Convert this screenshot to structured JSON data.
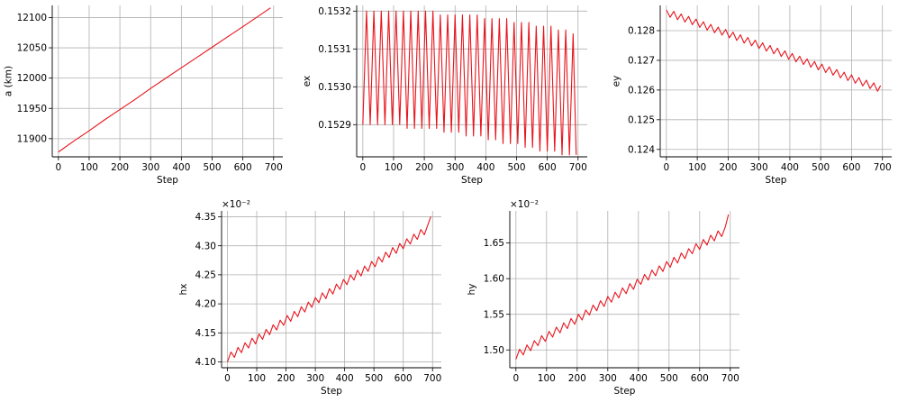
{
  "chart_data": [
    {
      "type": "line",
      "xlabel": "Step",
      "ylabel": "a (km)",
      "xlim": [
        -20,
        730
      ],
      "ylim": [
        11870,
        12120
      ],
      "xticks": [
        0,
        100,
        200,
        300,
        400,
        500,
        600,
        700
      ],
      "xtick_labels": [
        "0",
        "100",
        "200",
        "300",
        "400",
        "500",
        "600",
        "700"
      ],
      "yticks": [
        11900,
        11950,
        12000,
        12050,
        12100
      ],
      "ytick_labels": [
        "11900",
        "11950",
        "12000",
        "12050",
        "12100"
      ],
      "exponent_label": "",
      "grid": true,
      "color": "#e8141c",
      "x": [
        0,
        50,
        100,
        150,
        200,
        250,
        300,
        350,
        400,
        450,
        500,
        550,
        600,
        650,
        690
      ],
      "y": [
        11878,
        11896,
        11913,
        11931,
        11948,
        11965,
        11983,
        12000,
        12017,
        12034,
        12051,
        12068,
        12085,
        12102,
        12116
      ]
    },
    {
      "type": "line",
      "xlabel": "Step",
      "ylabel": "ex",
      "xlim": [
        -20,
        730
      ],
      "ylim": [
        0.152815,
        0.153215
      ],
      "xticks": [
        0,
        100,
        200,
        300,
        400,
        500,
        600,
        700
      ],
      "xtick_labels": [
        "0",
        "100",
        "200",
        "300",
        "400",
        "500",
        "600",
        "700"
      ],
      "yticks": [
        0.1529,
        0.153,
        0.1531,
        0.1532
      ],
      "ytick_labels": [
        "0.1529",
        "0.1530",
        "0.1531",
        "0.1532"
      ],
      "exponent_label": "",
      "grid": true,
      "color": "#e8141c",
      "x": [
        0,
        12,
        24,
        36,
        48,
        60,
        72,
        84,
        96,
        108,
        120,
        132,
        144,
        156,
        168,
        180,
        192,
        204,
        216,
        228,
        240,
        252,
        264,
        276,
        288,
        300,
        312,
        324,
        336,
        348,
        360,
        372,
        384,
        396,
        408,
        420,
        432,
        444,
        456,
        468,
        480,
        492,
        504,
        516,
        528,
        540,
        552,
        564,
        576,
        588,
        600,
        612,
        624,
        636,
        648,
        660,
        672,
        684,
        694
      ],
      "y": [
        0.1529,
        0.1532,
        0.1529,
        0.1532,
        0.1529,
        0.1532,
        0.1529,
        0.1532,
        0.1529,
        0.1532,
        0.1529,
        0.1532,
        0.15289,
        0.1532,
        0.15289,
        0.1532,
        0.15289,
        0.1532,
        0.15289,
        0.1532,
        0.15289,
        0.15319,
        0.15288,
        0.15319,
        0.15288,
        0.15319,
        0.15288,
        0.15319,
        0.15287,
        0.15319,
        0.15287,
        0.15319,
        0.15287,
        0.15318,
        0.15286,
        0.15318,
        0.15286,
        0.15318,
        0.15285,
        0.15318,
        0.15285,
        0.15317,
        0.15285,
        0.15317,
        0.15284,
        0.15317,
        0.15284,
        0.15316,
        0.15283,
        0.15316,
        0.15283,
        0.15316,
        0.15283,
        0.15315,
        0.15282,
        0.15315,
        0.15282,
        0.15314,
        0.15282
      ]
    },
    {
      "type": "line",
      "xlabel": "Step",
      "ylabel": "ey",
      "xlim": [
        -20,
        730
      ],
      "ylim": [
        0.12375,
        0.12885
      ],
      "xticks": [
        0,
        100,
        200,
        300,
        400,
        500,
        600,
        700
      ],
      "xtick_labels": [
        "0",
        "100",
        "200",
        "300",
        "400",
        "500",
        "600",
        "700"
      ],
      "yticks": [
        0.124,
        0.125,
        0.126,
        0.127,
        0.128
      ],
      "ytick_labels": [
        "0.124",
        "0.125",
        "0.126",
        "0.127",
        "0.128"
      ],
      "exponent_label": "",
      "grid": true,
      "color": "#e8141c",
      "x": [
        0,
        12,
        24,
        36,
        48,
        60,
        72,
        84,
        96,
        108,
        120,
        132,
        144,
        156,
        168,
        180,
        192,
        204,
        216,
        228,
        240,
        252,
        264,
        276,
        288,
        300,
        312,
        324,
        336,
        348,
        360,
        372,
        384,
        396,
        408,
        420,
        432,
        444,
        456,
        468,
        480,
        492,
        504,
        516,
        528,
        540,
        552,
        564,
        576,
        588,
        600,
        612,
        624,
        636,
        648,
        660,
        672,
        684,
        694
      ],
      "y": [
        0.1287,
        0.12845,
        0.12865,
        0.12837,
        0.12856,
        0.12829,
        0.12848,
        0.1282,
        0.12839,
        0.12811,
        0.1283,
        0.12802,
        0.12821,
        0.12793,
        0.12812,
        0.12785,
        0.12804,
        0.12776,
        0.12795,
        0.12767,
        0.12786,
        0.12758,
        0.12777,
        0.12749,
        0.12768,
        0.1274,
        0.12759,
        0.12731,
        0.1275,
        0.12722,
        0.12741,
        0.12713,
        0.12732,
        0.12704,
        0.12723,
        0.12695,
        0.12714,
        0.12686,
        0.12705,
        0.12677,
        0.12696,
        0.12668,
        0.12687,
        0.12659,
        0.12678,
        0.1265,
        0.12669,
        0.12641,
        0.1266,
        0.12632,
        0.12651,
        0.12623,
        0.12642,
        0.12614,
        0.12633,
        0.12605,
        0.12624,
        0.12596,
        0.12615
      ]
    },
    {
      "type": "line",
      "xlabel": "Step",
      "ylabel": "hx",
      "xlim": [
        -20,
        730
      ],
      "ylim": [
        4.09,
        4.36
      ],
      "xticks": [
        0,
        100,
        200,
        300,
        400,
        500,
        600,
        700
      ],
      "xtick_labels": [
        "0",
        "100",
        "200",
        "300",
        "400",
        "500",
        "600",
        "700"
      ],
      "yticks": [
        4.1,
        4.15,
        4.2,
        4.25,
        4.3,
        4.35
      ],
      "ytick_labels": [
        "4.10",
        "4.15",
        "4.20",
        "4.25",
        "4.30",
        "4.35"
      ],
      "exponent_label": "×10⁻²",
      "grid": true,
      "color": "#e8141c",
      "x": [
        0,
        12,
        24,
        36,
        48,
        60,
        72,
        84,
        96,
        108,
        120,
        132,
        144,
        156,
        168,
        180,
        192,
        204,
        216,
        228,
        240,
        252,
        264,
        276,
        288,
        300,
        312,
        324,
        336,
        348,
        360,
        372,
        384,
        396,
        408,
        420,
        432,
        444,
        456,
        468,
        480,
        492,
        504,
        516,
        528,
        540,
        552,
        564,
        576,
        588,
        600,
        612,
        624,
        636,
        648,
        660,
        672,
        684,
        694
      ],
      "y": [
        4.1,
        4.117,
        4.108,
        4.125,
        4.116,
        4.133,
        4.124,
        4.141,
        4.131,
        4.148,
        4.139,
        4.156,
        4.147,
        4.164,
        4.155,
        4.172,
        4.163,
        4.18,
        4.17,
        4.187,
        4.178,
        4.195,
        4.186,
        4.203,
        4.194,
        4.211,
        4.202,
        4.219,
        4.209,
        4.226,
        4.217,
        4.234,
        4.225,
        4.242,
        4.233,
        4.25,
        4.241,
        4.258,
        4.248,
        4.265,
        4.256,
        4.273,
        4.264,
        4.281,
        4.272,
        4.289,
        4.28,
        4.297,
        4.287,
        4.304,
        4.295,
        4.312,
        4.303,
        4.32,
        4.311,
        4.328,
        4.319,
        4.336,
        4.35
      ]
    },
    {
      "type": "line",
      "xlabel": "Step",
      "ylabel": "hy",
      "xlim": [
        -20,
        730
      ],
      "ylim": [
        1.475,
        1.695
      ],
      "xticks": [
        0,
        100,
        200,
        300,
        400,
        500,
        600,
        700
      ],
      "xtick_labels": [
        "0",
        "100",
        "200",
        "300",
        "400",
        "500",
        "600",
        "700"
      ],
      "yticks": [
        1.5,
        1.55,
        1.6,
        1.65
      ],
      "ytick_labels": [
        "1.50",
        "1.55",
        "1.60",
        "1.65"
      ],
      "exponent_label": "×10⁻²",
      "grid": true,
      "color": "#e8141c",
      "x": [
        0,
        12,
        24,
        36,
        48,
        60,
        72,
        84,
        96,
        108,
        120,
        132,
        144,
        156,
        168,
        180,
        192,
        204,
        216,
        228,
        240,
        252,
        264,
        276,
        288,
        300,
        312,
        324,
        336,
        348,
        360,
        372,
        384,
        396,
        408,
        420,
        432,
        444,
        456,
        468,
        480,
        492,
        504,
        516,
        528,
        540,
        552,
        564,
        576,
        588,
        600,
        612,
        624,
        636,
        648,
        660,
        672,
        684,
        694
      ],
      "y": [
        1.487,
        1.501,
        1.493,
        1.507,
        1.499,
        1.513,
        1.506,
        1.52,
        1.512,
        1.526,
        1.518,
        1.532,
        1.524,
        1.538,
        1.53,
        1.544,
        1.536,
        1.55,
        1.542,
        1.556,
        1.549,
        1.563,
        1.555,
        1.569,
        1.561,
        1.575,
        1.567,
        1.581,
        1.573,
        1.587,
        1.579,
        1.593,
        1.585,
        1.599,
        1.592,
        1.606,
        1.598,
        1.612,
        1.604,
        1.618,
        1.61,
        1.624,
        1.616,
        1.63,
        1.622,
        1.636,
        1.628,
        1.642,
        1.635,
        1.649,
        1.641,
        1.655,
        1.647,
        1.661,
        1.653,
        1.667,
        1.659,
        1.673,
        1.69
      ]
    }
  ]
}
